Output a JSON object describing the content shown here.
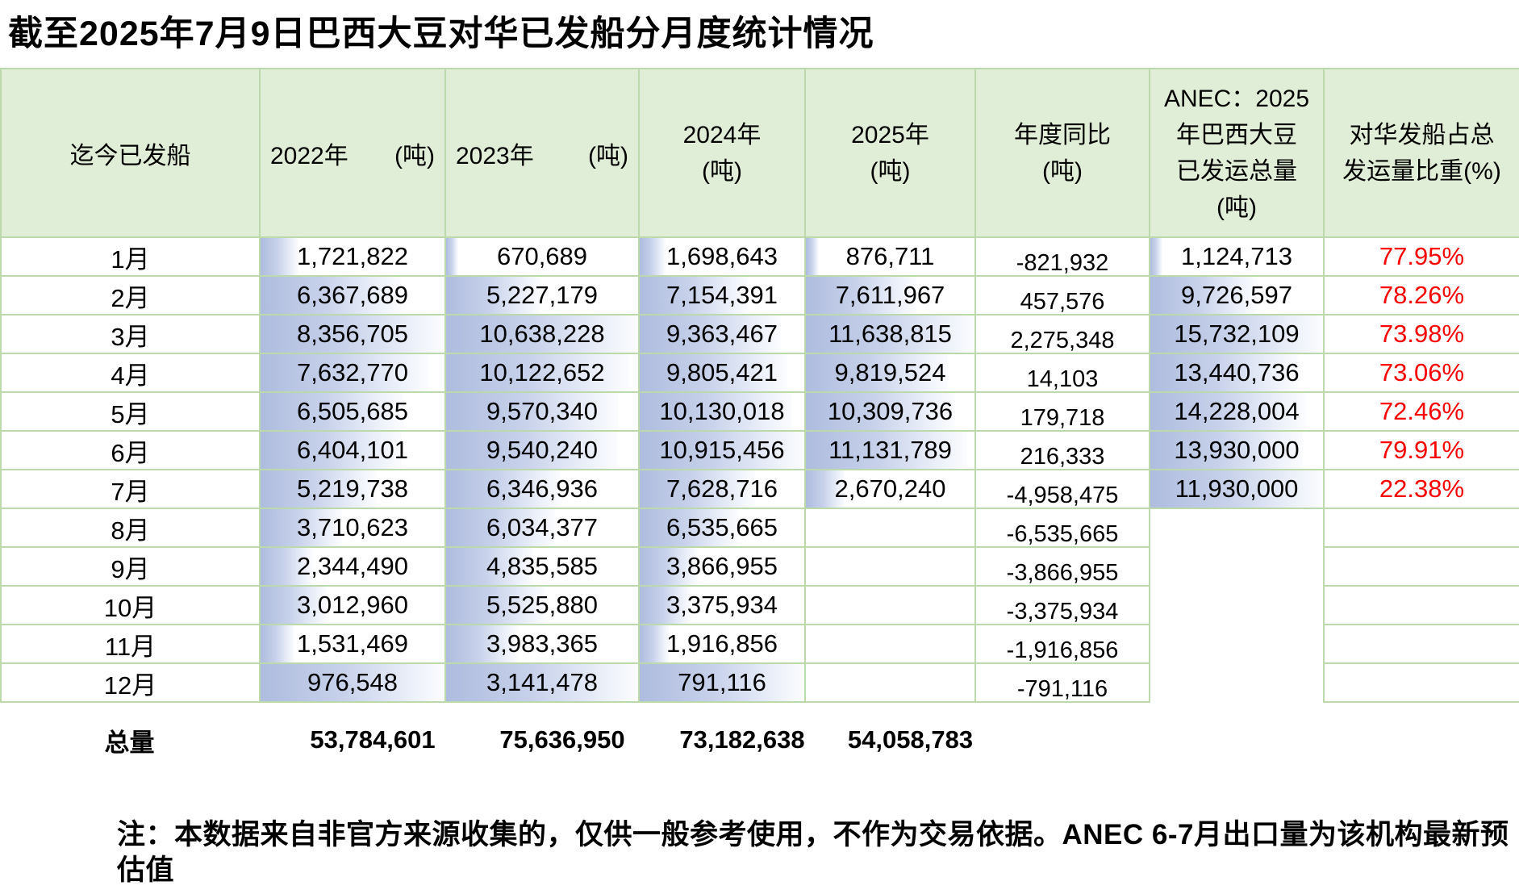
{
  "title": "截至2025年7月9日巴西大豆对华已发船分月度统计情况",
  "note": "注：本数据来自非官方来源收集的，仅供一般参考使用，不作为交易依据。ANEC 6-7月出口量为该机构最新预估值",
  "colors": {
    "header_bg": "#e1eed7",
    "grid_border": "#bcd9ab",
    "bar_blue": "#aebcde",
    "percent_red": "#fe0000"
  },
  "table": {
    "headers": {
      "col1": "迄今已发船",
      "col2_year": "2022年",
      "col2_unit": "(吨)",
      "col3_year": "2023年",
      "col3_unit": "(吨)",
      "col4_line1": "2024年",
      "col4_line2": "(吨)",
      "col5_line1": "2025年",
      "col5_line2": "(吨)",
      "col6_line1": "年度同比",
      "col6_line2": "(吨)",
      "col7_line1": "ANEC：2025",
      "col7_line2": "年巴西大豆",
      "col7_line3": "已发运总量",
      "col7_line4": "(吨)",
      "col8_line1": "对华发船占总",
      "col8_line2": "发运量比重(%)"
    },
    "rows": [
      {
        "month": "1月",
        "y2022": "1,721,822",
        "b2022": 0.206,
        "y2023": "670,689",
        "b2023": 0.063,
        "y2024": "1,698,643",
        "b2024": 0.156,
        "y2025": "876,711",
        "b2025": 0.075,
        "yoy": "-821,932",
        "anec": "1,124,713",
        "b_anec": 0.071,
        "pct": "77.95%"
      },
      {
        "month": "2月",
        "y2022": "6,367,689",
        "b2022": 0.762,
        "y2023": "5,227,179",
        "b2023": 0.491,
        "y2024": "7,154,391",
        "b2024": 0.655,
        "y2025": "7,611,967",
        "b2025": 0.654,
        "yoy": "457,576",
        "anec": "9,726,597",
        "b_anec": 0.618,
        "pct": "78.26%"
      },
      {
        "month": "3月",
        "y2022": "8,356,705",
        "b2022": 1.0,
        "y2023": "10,638,228",
        "b2023": 1.0,
        "y2024": "9,363,467",
        "b2024": 0.858,
        "y2025": "11,638,815",
        "b2025": 1.0,
        "yoy": "2,275,348",
        "anec": "15,732,109",
        "b_anec": 1.0,
        "pct": "73.98%"
      },
      {
        "month": "4月",
        "y2022": "7,632,770",
        "b2022": 0.913,
        "y2023": "10,122,652",
        "b2023": 0.952,
        "y2024": "9,805,421",
        "b2024": 0.898,
        "y2025": "9,819,524",
        "b2025": 0.844,
        "yoy": "14,103",
        "anec": "13,440,736",
        "b_anec": 0.854,
        "pct": "73.06%"
      },
      {
        "month": "5月",
        "y2022": "6,505,685",
        "b2022": 0.778,
        "y2023": "9,570,340",
        "b2023": 0.9,
        "y2024": "10,130,018",
        "b2024": 0.928,
        "y2025": "10,309,736",
        "b2025": 0.886,
        "yoy": "179,718",
        "anec": "14,228,004",
        "b_anec": 0.904,
        "pct": "72.46%"
      },
      {
        "month": "6月",
        "y2022": "6,404,101",
        "b2022": 0.766,
        "y2023": "9,540,240",
        "b2023": 0.897,
        "y2024": "10,915,456",
        "b2024": 1.0,
        "y2025": "11,131,789",
        "b2025": 0.956,
        "yoy": "216,333",
        "anec": "13,930,000",
        "b_anec": 0.885,
        "pct": "79.91%"
      },
      {
        "month": "7月",
        "y2022": "5,219,738",
        "b2022": 0.625,
        "y2023": "6,346,936",
        "b2023": 0.597,
        "y2024": "7,628,716",
        "b2024": 0.699,
        "y2025": "2,670,240",
        "b2025": 0.229,
        "yoy": "-4,958,475",
        "anec": "11,930,000",
        "b_anec": 1.0,
        "pct": "22.38%"
      },
      {
        "month": "8月",
        "y2022": "3,710,623",
        "b2022": 0.444,
        "y2023": "6,034,377",
        "b2023": 0.567,
        "y2024": "6,535,665",
        "b2024": 0.599,
        "y2025": "",
        "b2025": null,
        "yoy": "-6,535,665",
        "anec": "",
        "b_anec": null,
        "pct": ""
      },
      {
        "month": "9月",
        "y2022": "2,344,490",
        "b2022": 0.281,
        "y2023": "4,835,585",
        "b2023": 0.455,
        "y2024": "3,866,955",
        "b2024": 0.354,
        "y2025": "",
        "b2025": null,
        "yoy": "-3,866,955",
        "anec": "",
        "b_anec": null,
        "pct": ""
      },
      {
        "month": "10月",
        "y2022": "3,012,960",
        "b2022": 0.361,
        "y2023": "5,525,880",
        "b2023": 0.519,
        "y2024": "3,375,934",
        "b2024": 0.309,
        "y2025": "",
        "b2025": null,
        "yoy": "-3,375,934",
        "anec": "",
        "b_anec": null,
        "pct": ""
      },
      {
        "month": "11月",
        "y2022": "1,531,469",
        "b2022": 0.183,
        "y2023": "3,983,365",
        "b2023": 0.374,
        "y2024": "1,916,856",
        "b2024": 0.176,
        "y2025": "",
        "b2025": null,
        "yoy": "-1,916,856",
        "anec": "",
        "b_anec": null,
        "pct": ""
      },
      {
        "month": "12月",
        "y2022": "976,548",
        "b2022": 1.0,
        "y2023": "3,141,478",
        "b2023": 1.0,
        "y2024": "791,116",
        "b2024": 1.0,
        "y2025": "",
        "b2025": null,
        "yoy": "-791,116",
        "anec": "",
        "b_anec": null,
        "pct": ""
      }
    ],
    "total": {
      "label": "总量",
      "y2022": "53,784,601",
      "y2023": "75,636,950",
      "y2024": "73,182,638",
      "y2025": "54,058,783"
    }
  },
  "chart_data": {
    "type": "table",
    "title": "截至2025年7月9日巴西大豆对华已发船分月度统计情况",
    "categories": [
      "1月",
      "2月",
      "3月",
      "4月",
      "5月",
      "6月",
      "7月",
      "8月",
      "9月",
      "10月",
      "11月",
      "12月"
    ],
    "series": [
      {
        "name": "2022年(吨)",
        "values": [
          1721822,
          6367689,
          8356705,
          7632770,
          6505685,
          6404101,
          5219738,
          3710623,
          2344490,
          3012960,
          1531469,
          976548
        ]
      },
      {
        "name": "2023年(吨)",
        "values": [
          670689,
          5227179,
          10638228,
          10122652,
          9570340,
          9540240,
          6346936,
          6034377,
          4835585,
          5525880,
          3983365,
          3141478
        ]
      },
      {
        "name": "2024年(吨)",
        "values": [
          1698643,
          7154391,
          9363467,
          9805421,
          10130018,
          10915456,
          7628716,
          6535665,
          3866955,
          3375934,
          1916856,
          791116
        ]
      },
      {
        "name": "2025年(吨)",
        "values": [
          876711,
          7611967,
          11638815,
          9819524,
          10309736,
          11131789,
          2670240,
          null,
          null,
          null,
          null,
          null
        ]
      },
      {
        "name": "年度同比(吨)",
        "values": [
          -821932,
          457576,
          2275348,
          14103,
          179718,
          216333,
          -4958475,
          -6535665,
          -3866955,
          -3375934,
          -1916856,
          -791116
        ]
      },
      {
        "name": "ANEC：2025年巴西大豆已发运总量(吨)",
        "values": [
          1124713,
          9726597,
          15732109,
          13440736,
          14228004,
          13930000,
          11930000,
          null,
          null,
          null,
          null,
          null
        ]
      },
      {
        "name": "对华发船占总发运量比重(%)",
        "values": [
          77.95,
          78.26,
          73.98,
          73.06,
          72.46,
          79.91,
          22.38,
          null,
          null,
          null,
          null,
          null
        ]
      }
    ],
    "totals": {
      "2022": 53784601,
      "2023": 75636950,
      "2024": 73182638,
      "2025": 54058783
    }
  }
}
